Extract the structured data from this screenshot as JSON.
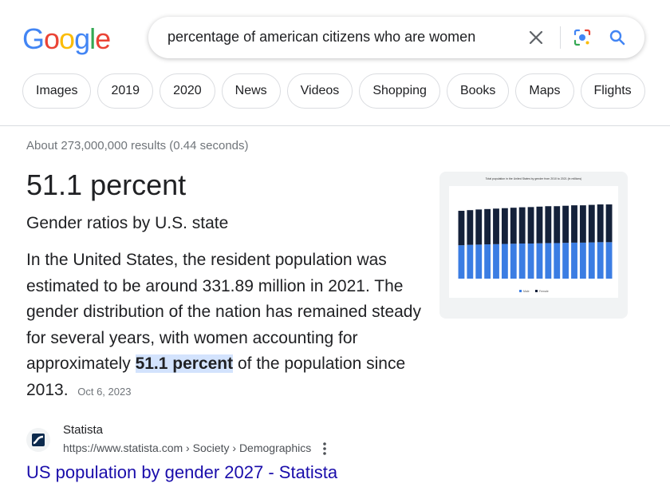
{
  "header": {
    "logo_letters": [
      "G",
      "o",
      "o",
      "g",
      "l",
      "e"
    ],
    "search_query": "percentage of american citizens who are women",
    "icons": {
      "clear": "close-icon",
      "lens": "lens-icon",
      "search": "search-icon"
    }
  },
  "chips": [
    "Images",
    "2019",
    "2020",
    "News",
    "Videos",
    "Shopping",
    "Books",
    "Maps",
    "Flights"
  ],
  "results": {
    "stats": "About 273,000,000 results (0.44 seconds)",
    "answer": "51.1 percent",
    "subtitle": "Gender ratios by U.S. state",
    "snippet_before": "In the United States, the resident population was estimated to be around 331.89 million in 2021. The gender distribution of the nation has remained steady for several years, with women accounting for approximately ",
    "snippet_highlight": "51.1 percent",
    "snippet_after": " of the population since 2013.",
    "date": "Oct 6, 2023"
  },
  "thumbnail": {
    "title": "Total population in the United States by gender from 2010 to 2021 (in millions)",
    "male_values": [
      152,
      154,
      155,
      156,
      157,
      158,
      159,
      160,
      160,
      161,
      162,
      162,
      163,
      164,
      164,
      165,
      166,
      166
    ],
    "female_values": [
      157,
      158,
      160,
      161,
      162,
      163,
      164,
      165,
      166,
      167,
      168,
      168,
      169,
      170,
      170,
      171,
      172,
      172
    ],
    "male_color": "#3b7de3",
    "female_color": "#14213a",
    "legend": [
      "Male",
      "Female"
    ]
  },
  "source": {
    "name": "Statista",
    "url": "https://www.statista.com › Society › Demographics",
    "title": "US population by gender 2027 - Statista"
  },
  "colors": {
    "link": "#1a0dab",
    "highlight": "#d3e3fd",
    "google_blue": "#4285f4",
    "google_red": "#ea4335",
    "google_yellow": "#fbbc05",
    "google_green": "#34a853"
  }
}
